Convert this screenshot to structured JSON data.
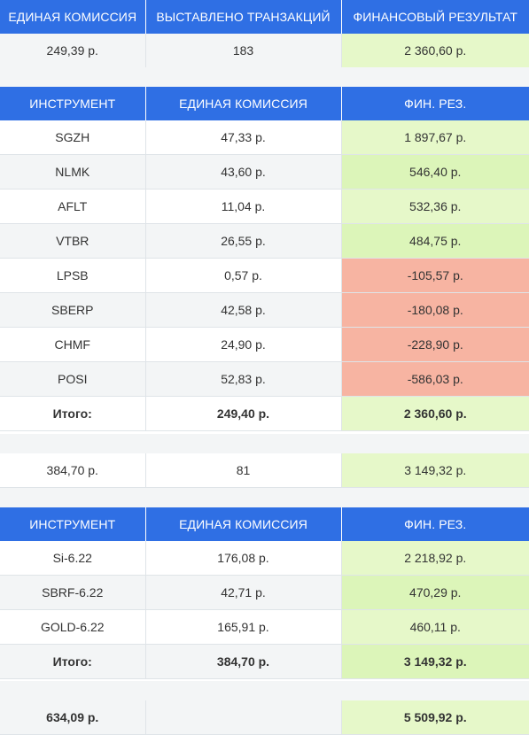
{
  "summary_header": {
    "col1": "ЕДИНАЯ КОМИССИЯ",
    "col2": "ВЫСТАВЛЕНО ТРАНЗАКЦИЙ",
    "col3": "ФИНАНСОВЫЙ РЕЗУЛЬТАТ"
  },
  "summary1": {
    "commission": "249,39 р.",
    "transactions": "183",
    "result": "2 360,60 р."
  },
  "table1": {
    "headers": {
      "col1": "ИНСТРУМЕНТ",
      "col2": "ЕДИНАЯ КОМИССИЯ",
      "col3": "ФИН. РЕЗ."
    },
    "rows": [
      {
        "instrument": "SGZH",
        "commission": "47,33 р.",
        "result": "1 897,67 р."
      },
      {
        "instrument": "NLMK",
        "commission": "43,60 р.",
        "result": "546,40 р."
      },
      {
        "instrument": "AFLT",
        "commission": "11,04 р.",
        "result": "532,36 р."
      },
      {
        "instrument": "VTBR",
        "commission": "26,55 р.",
        "result": "484,75 р."
      },
      {
        "instrument": "LPSB",
        "commission": "0,57 р.",
        "result": "-105,57 р."
      },
      {
        "instrument": "SBERP",
        "commission": "42,58 р.",
        "result": "-180,08 р."
      },
      {
        "instrument": "CHMF",
        "commission": "24,90 р.",
        "result": "-228,90 р."
      },
      {
        "instrument": "POSI",
        "commission": "52,83 р.",
        "result": "-586,03 р."
      }
    ],
    "total": {
      "label": "Итого:",
      "commission": "249,40 р.",
      "result": "2 360,60 р."
    }
  },
  "summary2": {
    "commission": "384,70 р.",
    "transactions": "81",
    "result": "3 149,32 р."
  },
  "table2": {
    "headers": {
      "col1": "ИНСТРУМЕНТ",
      "col2": "ЕДИНАЯ КОМИССИЯ",
      "col3": "ФИН. РЕЗ."
    },
    "rows": [
      {
        "instrument": "Si-6.22",
        "commission": "176,08 р.",
        "result": "2 218,92 р."
      },
      {
        "instrument": "SBRF-6.22",
        "commission": "42,71 р.",
        "result": "470,29 р."
      },
      {
        "instrument": "GOLD-6.22",
        "commission": "165,91 р.",
        "result": "460,11 р."
      }
    ],
    "total": {
      "label": "Итого:",
      "commission": "384,70 р.",
      "result": "3 149,32 р."
    }
  },
  "grand_total": {
    "commission": "634,09 р.",
    "transactions": "",
    "result": "5 509,92 р."
  },
  "colors": {
    "header_blue": "#2f6fe4",
    "positive_green": "#e6f8c9",
    "negative_red": "#f7b4a2"
  }
}
